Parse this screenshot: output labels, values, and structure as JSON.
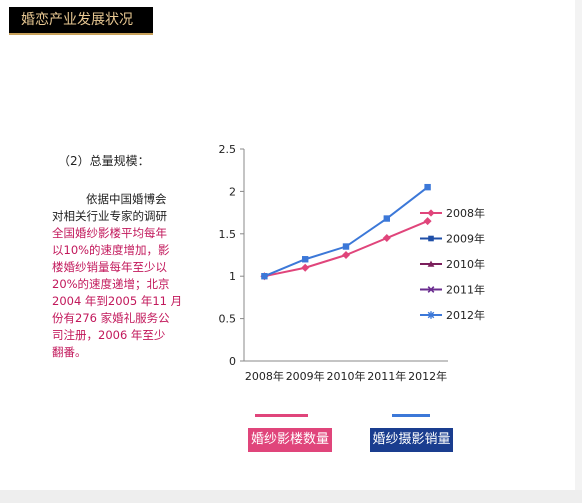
{
  "slide": {
    "title": "婚恋产业发展状况",
    "section_label": "（2）总量规模：",
    "paragraph": {
      "lines": [
        {
          "text": "依据中国婚博会",
          "color": "black",
          "indent": true
        },
        {
          "text": "对相关行业专家的调研",
          "color": "black",
          "indent": false
        },
        {
          "text": "全国婚纱影楼平均每年",
          "color": "pink",
          "indent": false
        },
        {
          "text": "以10%的速度增加，影",
          "color": "pink",
          "indent": false
        },
        {
          "text": "楼婚纱销量每年至少以",
          "color": "pink",
          "indent": false
        },
        {
          "text": "20%的速度递增；北京",
          "color": "pink",
          "indent": false
        },
        {
          "text": "2004 年到2005 年11 月",
          "color": "pink",
          "indent": false
        },
        {
          "text": "份有276 家婚礼服务公",
          "color": "pink",
          "indent": false
        },
        {
          "text": "司注册，2006 年至少",
          "color": "pink",
          "indent": false
        },
        {
          "text": "翻番。",
          "color": "pink",
          "indent": false
        }
      ]
    },
    "keys": [
      {
        "label": "婚纱影楼数量",
        "line_color": "#e0457b",
        "box_color": "#e0457b"
      },
      {
        "label": "婚纱摄影销量",
        "line_color": "#3c78d8",
        "box_color": "#1a3d8f"
      }
    ]
  },
  "chart_data": {
    "type": "line",
    "categories": [
      "2008年",
      "2009年",
      "2010年",
      "2011年",
      "2012年"
    ],
    "ylim": [
      0,
      2.5
    ],
    "yticks": [
      "0",
      "0.5",
      "1",
      "1.5",
      "2",
      "2.5"
    ],
    "grid": false,
    "legend_placement": "right",
    "series": [
      {
        "name": "2008年",
        "color": "#e0457b",
        "marker": "diamond",
        "values": [
          1.0,
          1.1,
          1.25,
          1.45,
          1.65
        ]
      },
      {
        "name": "2009年",
        "color": "#3c78d8",
        "marker": "square",
        "values": [
          1.0,
          1.2,
          1.35,
          1.68,
          2.05
        ]
      }
    ],
    "legend_entries": [
      {
        "name": "2008年",
        "color": "#e0457b",
        "marker": "diamond"
      },
      {
        "name": "2009年",
        "color": "#1f4fa8",
        "marker": "square"
      },
      {
        "name": "2010年",
        "color": "#7b1f5c",
        "marker": "triangle"
      },
      {
        "name": "2011年",
        "color": "#6a2c8f",
        "marker": "x"
      },
      {
        "name": "2012年",
        "color": "#3c78d8",
        "marker": "star"
      }
    ]
  }
}
